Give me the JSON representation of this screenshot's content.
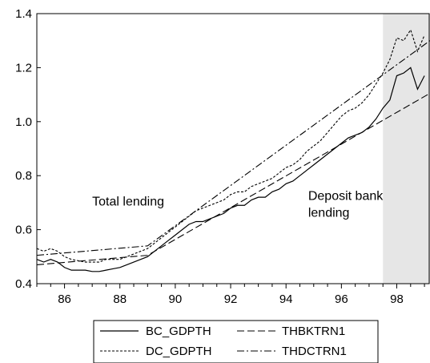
{
  "chart_data": {
    "type": "line",
    "title": "",
    "xlabel": "",
    "ylabel": "",
    "xlim": [
      1985.0,
      1999.2
    ],
    "ylim": [
      0.4,
      1.4
    ],
    "x_ticks": [
      1986,
      1988,
      1990,
      1992,
      1994,
      1996,
      1998
    ],
    "x_tick_labels": [
      "86",
      "88",
      "90",
      "92",
      "94",
      "96",
      "98"
    ],
    "y_ticks": [
      0.4,
      0.6,
      0.8,
      1.0,
      1.2,
      1.4
    ],
    "y_tick_labels": [
      "0.4",
      "0.6",
      "0.8",
      "1.0",
      "1.2",
      "1.4"
    ],
    "grid": false,
    "shaded_region": {
      "x_start": 1997.5,
      "x_end": 1999.2,
      "color": "#e6e6e6"
    },
    "legend_position": "bottom",
    "annotations": [
      {
        "lines": [
          "Total lending"
        ],
        "x": 1987.0,
        "y": 0.69
      },
      {
        "lines": [
          "Deposit bank",
          "lending"
        ],
        "x": 1994.8,
        "y": 0.71
      }
    ],
    "series": [
      {
        "name": "BC_GDPTH",
        "style": "solid",
        "x": [
          1985.0,
          1985.25,
          1985.5,
          1985.75,
          1986.0,
          1986.25,
          1986.5,
          1986.75,
          1987.0,
          1987.25,
          1987.5,
          1987.75,
          1988.0,
          1988.25,
          1988.5,
          1988.75,
          1989.0,
          1989.25,
          1989.5,
          1989.75,
          1990.0,
          1990.25,
          1990.5,
          1990.75,
          1991.0,
          1991.25,
          1991.5,
          1991.75,
          1992.0,
          1992.25,
          1992.5,
          1992.75,
          1993.0,
          1993.25,
          1993.5,
          1993.75,
          1994.0,
          1994.25,
          1994.5,
          1994.75,
          1995.0,
          1995.25,
          1995.5,
          1995.75,
          1996.0,
          1996.25,
          1996.5,
          1996.75,
          1997.0,
          1997.25,
          1997.5,
          1997.75,
          1998.0,
          1998.25,
          1998.5,
          1998.75,
          1999.0
        ],
        "values": [
          0.49,
          0.48,
          0.49,
          0.48,
          0.46,
          0.45,
          0.45,
          0.45,
          0.445,
          0.445,
          0.45,
          0.455,
          0.46,
          0.47,
          0.48,
          0.49,
          0.5,
          0.52,
          0.54,
          0.56,
          0.58,
          0.6,
          0.62,
          0.63,
          0.63,
          0.64,
          0.65,
          0.66,
          0.68,
          0.69,
          0.69,
          0.71,
          0.72,
          0.72,
          0.74,
          0.75,
          0.77,
          0.78,
          0.8,
          0.82,
          0.84,
          0.86,
          0.88,
          0.9,
          0.92,
          0.94,
          0.95,
          0.96,
          0.98,
          1.01,
          1.05,
          1.08,
          1.17,
          1.18,
          1.2,
          1.12,
          1.17
        ]
      },
      {
        "name": "DC_GDPTH",
        "style": "dotted",
        "x": [
          1985.0,
          1985.25,
          1985.5,
          1985.75,
          1986.0,
          1986.25,
          1986.5,
          1986.75,
          1987.0,
          1987.25,
          1987.5,
          1987.75,
          1988.0,
          1988.25,
          1988.5,
          1988.75,
          1989.0,
          1989.25,
          1989.5,
          1989.75,
          1990.0,
          1990.25,
          1990.5,
          1990.75,
          1991.0,
          1991.25,
          1991.5,
          1991.75,
          1992.0,
          1992.25,
          1992.5,
          1992.75,
          1993.0,
          1993.25,
          1993.5,
          1993.75,
          1994.0,
          1994.25,
          1994.5,
          1994.75,
          1995.0,
          1995.25,
          1995.5,
          1995.75,
          1996.0,
          1996.25,
          1996.5,
          1996.75,
          1997.0,
          1997.25,
          1997.5,
          1997.75,
          1998.0,
          1998.25,
          1998.5,
          1998.75,
          1999.0
        ],
        "values": [
          0.53,
          0.52,
          0.53,
          0.52,
          0.5,
          0.49,
          0.485,
          0.48,
          0.48,
          0.48,
          0.49,
          0.49,
          0.49,
          0.5,
          0.51,
          0.52,
          0.53,
          0.55,
          0.57,
          0.59,
          0.61,
          0.63,
          0.65,
          0.67,
          0.68,
          0.69,
          0.7,
          0.71,
          0.73,
          0.74,
          0.74,
          0.76,
          0.77,
          0.78,
          0.79,
          0.81,
          0.83,
          0.84,
          0.86,
          0.89,
          0.91,
          0.93,
          0.96,
          0.99,
          1.02,
          1.04,
          1.05,
          1.07,
          1.1,
          1.14,
          1.18,
          1.23,
          1.31,
          1.3,
          1.34,
          1.26,
          1.32
        ]
      },
      {
        "name": "THBKTRN1",
        "style": "dashed",
        "x": [
          1985.0,
          1989.0,
          1999.2
        ],
        "values": [
          0.47,
          0.505,
          1.105
        ]
      },
      {
        "name": "THDCTRN1",
        "style": "dashdot",
        "x": [
          1985.0,
          1989.0,
          1999.2
        ],
        "values": [
          0.505,
          0.54,
          1.3
        ]
      }
    ]
  }
}
